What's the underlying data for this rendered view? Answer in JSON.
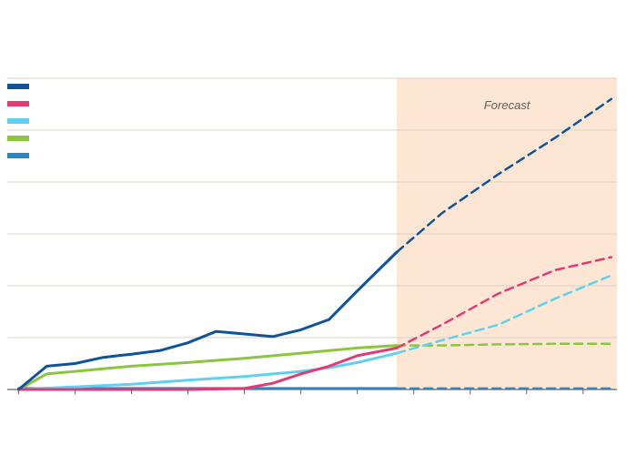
{
  "chart_data": {
    "type": "line",
    "title": "",
    "subtitle": "",
    "xlabel": "",
    "ylabel": "",
    "x": [
      2014,
      2015,
      2016,
      2017,
      2018,
      2019,
      2020,
      2021,
      2022,
      2023,
      2024
    ],
    "x_tick_labels": [
      "",
      "",
      "",
      "",
      "",
      "",
      "",
      "",
      "",
      "",
      ""
    ],
    "xlim": [
      2013.8,
      2024.6
    ],
    "ylim": [
      0,
      6
    ],
    "y_ticks": [
      0,
      1,
      2,
      3,
      4,
      5,
      6
    ],
    "y_tick_labels": [
      "",
      "",
      "",
      "",
      "",
      "",
      ""
    ],
    "y_axis_side": "right",
    "grid": true,
    "legend_position": "top-left",
    "forecast_region": {
      "x_start": 2020.7,
      "x_end": 2024.6,
      "label": "Forecast",
      "color": "#fde7d4"
    },
    "series": [
      {
        "name": "",
        "color": "#0f5499",
        "actual": {
          "x": [
            2014,
            2014.5,
            2015,
            2015.5,
            2016,
            2016.5,
            2017,
            2017.5,
            2018,
            2018.5,
            2019,
            2019.5,
            2020,
            2020.7
          ],
          "y": [
            0.0,
            0.45,
            0.5,
            0.62,
            0.68,
            0.75,
            0.9,
            1.12,
            1.07,
            1.02,
            1.15,
            1.35,
            1.9,
            2.65
          ]
        },
        "forecast": {
          "x": [
            2020.7,
            2021.5,
            2022.5,
            2023.5,
            2024.5
          ],
          "y": [
            2.65,
            3.4,
            4.15,
            4.85,
            5.6
          ]
        }
      },
      {
        "name": "",
        "color": "#e03b75",
        "actual": {
          "x": [
            2014,
            2015,
            2016,
            2017,
            2018,
            2018.5,
            2019,
            2019.5,
            2020,
            2020.7
          ],
          "y": [
            0.0,
            0.0,
            0.0,
            0.0,
            0.02,
            0.12,
            0.3,
            0.45,
            0.65,
            0.8
          ]
        },
        "forecast": {
          "x": [
            2020.7,
            2021.5,
            2022.5,
            2023.5,
            2024.5
          ],
          "y": [
            0.8,
            1.25,
            1.85,
            2.3,
            2.55
          ]
        }
      },
      {
        "name": "",
        "color": "#5ed1f0",
        "actual": {
          "x": [
            2014,
            2015,
            2016,
            2017,
            2018,
            2019,
            2019.5,
            2020,
            2020.7
          ],
          "y": [
            0.0,
            0.05,
            0.1,
            0.18,
            0.25,
            0.35,
            0.42,
            0.52,
            0.7
          ]
        },
        "forecast": {
          "x": [
            2020.7,
            2021.5,
            2022.5,
            2023.5,
            2024.5
          ],
          "y": [
            0.7,
            0.95,
            1.25,
            1.75,
            2.2
          ]
        }
      },
      {
        "name": "",
        "color": "#8cc63f",
        "actual": {
          "x": [
            2014,
            2014.5,
            2015,
            2016,
            2017,
            2018,
            2019,
            2020,
            2020.7
          ],
          "y": [
            0.0,
            0.3,
            0.35,
            0.45,
            0.52,
            0.6,
            0.7,
            0.8,
            0.85
          ]
        },
        "forecast": {
          "x": [
            2020.7,
            2021.5,
            2022.5,
            2023.5,
            2024.5
          ],
          "y": [
            0.85,
            0.85,
            0.87,
            0.88,
            0.88
          ]
        }
      },
      {
        "name": "",
        "color": "#2e86c1",
        "actual": {
          "x": [
            2014,
            2015,
            2016,
            2017,
            2018,
            2019,
            2020,
            2020.7
          ],
          "y": [
            0.02,
            0.02,
            0.02,
            0.02,
            0.02,
            0.02,
            0.02,
            0.02
          ]
        },
        "forecast": {
          "x": [
            2020.7,
            2021.5,
            2022.5,
            2023.5,
            2024.5
          ],
          "y": [
            0.02,
            0.02,
            0.02,
            0.02,
            0.02
          ]
        }
      }
    ],
    "source": ""
  }
}
